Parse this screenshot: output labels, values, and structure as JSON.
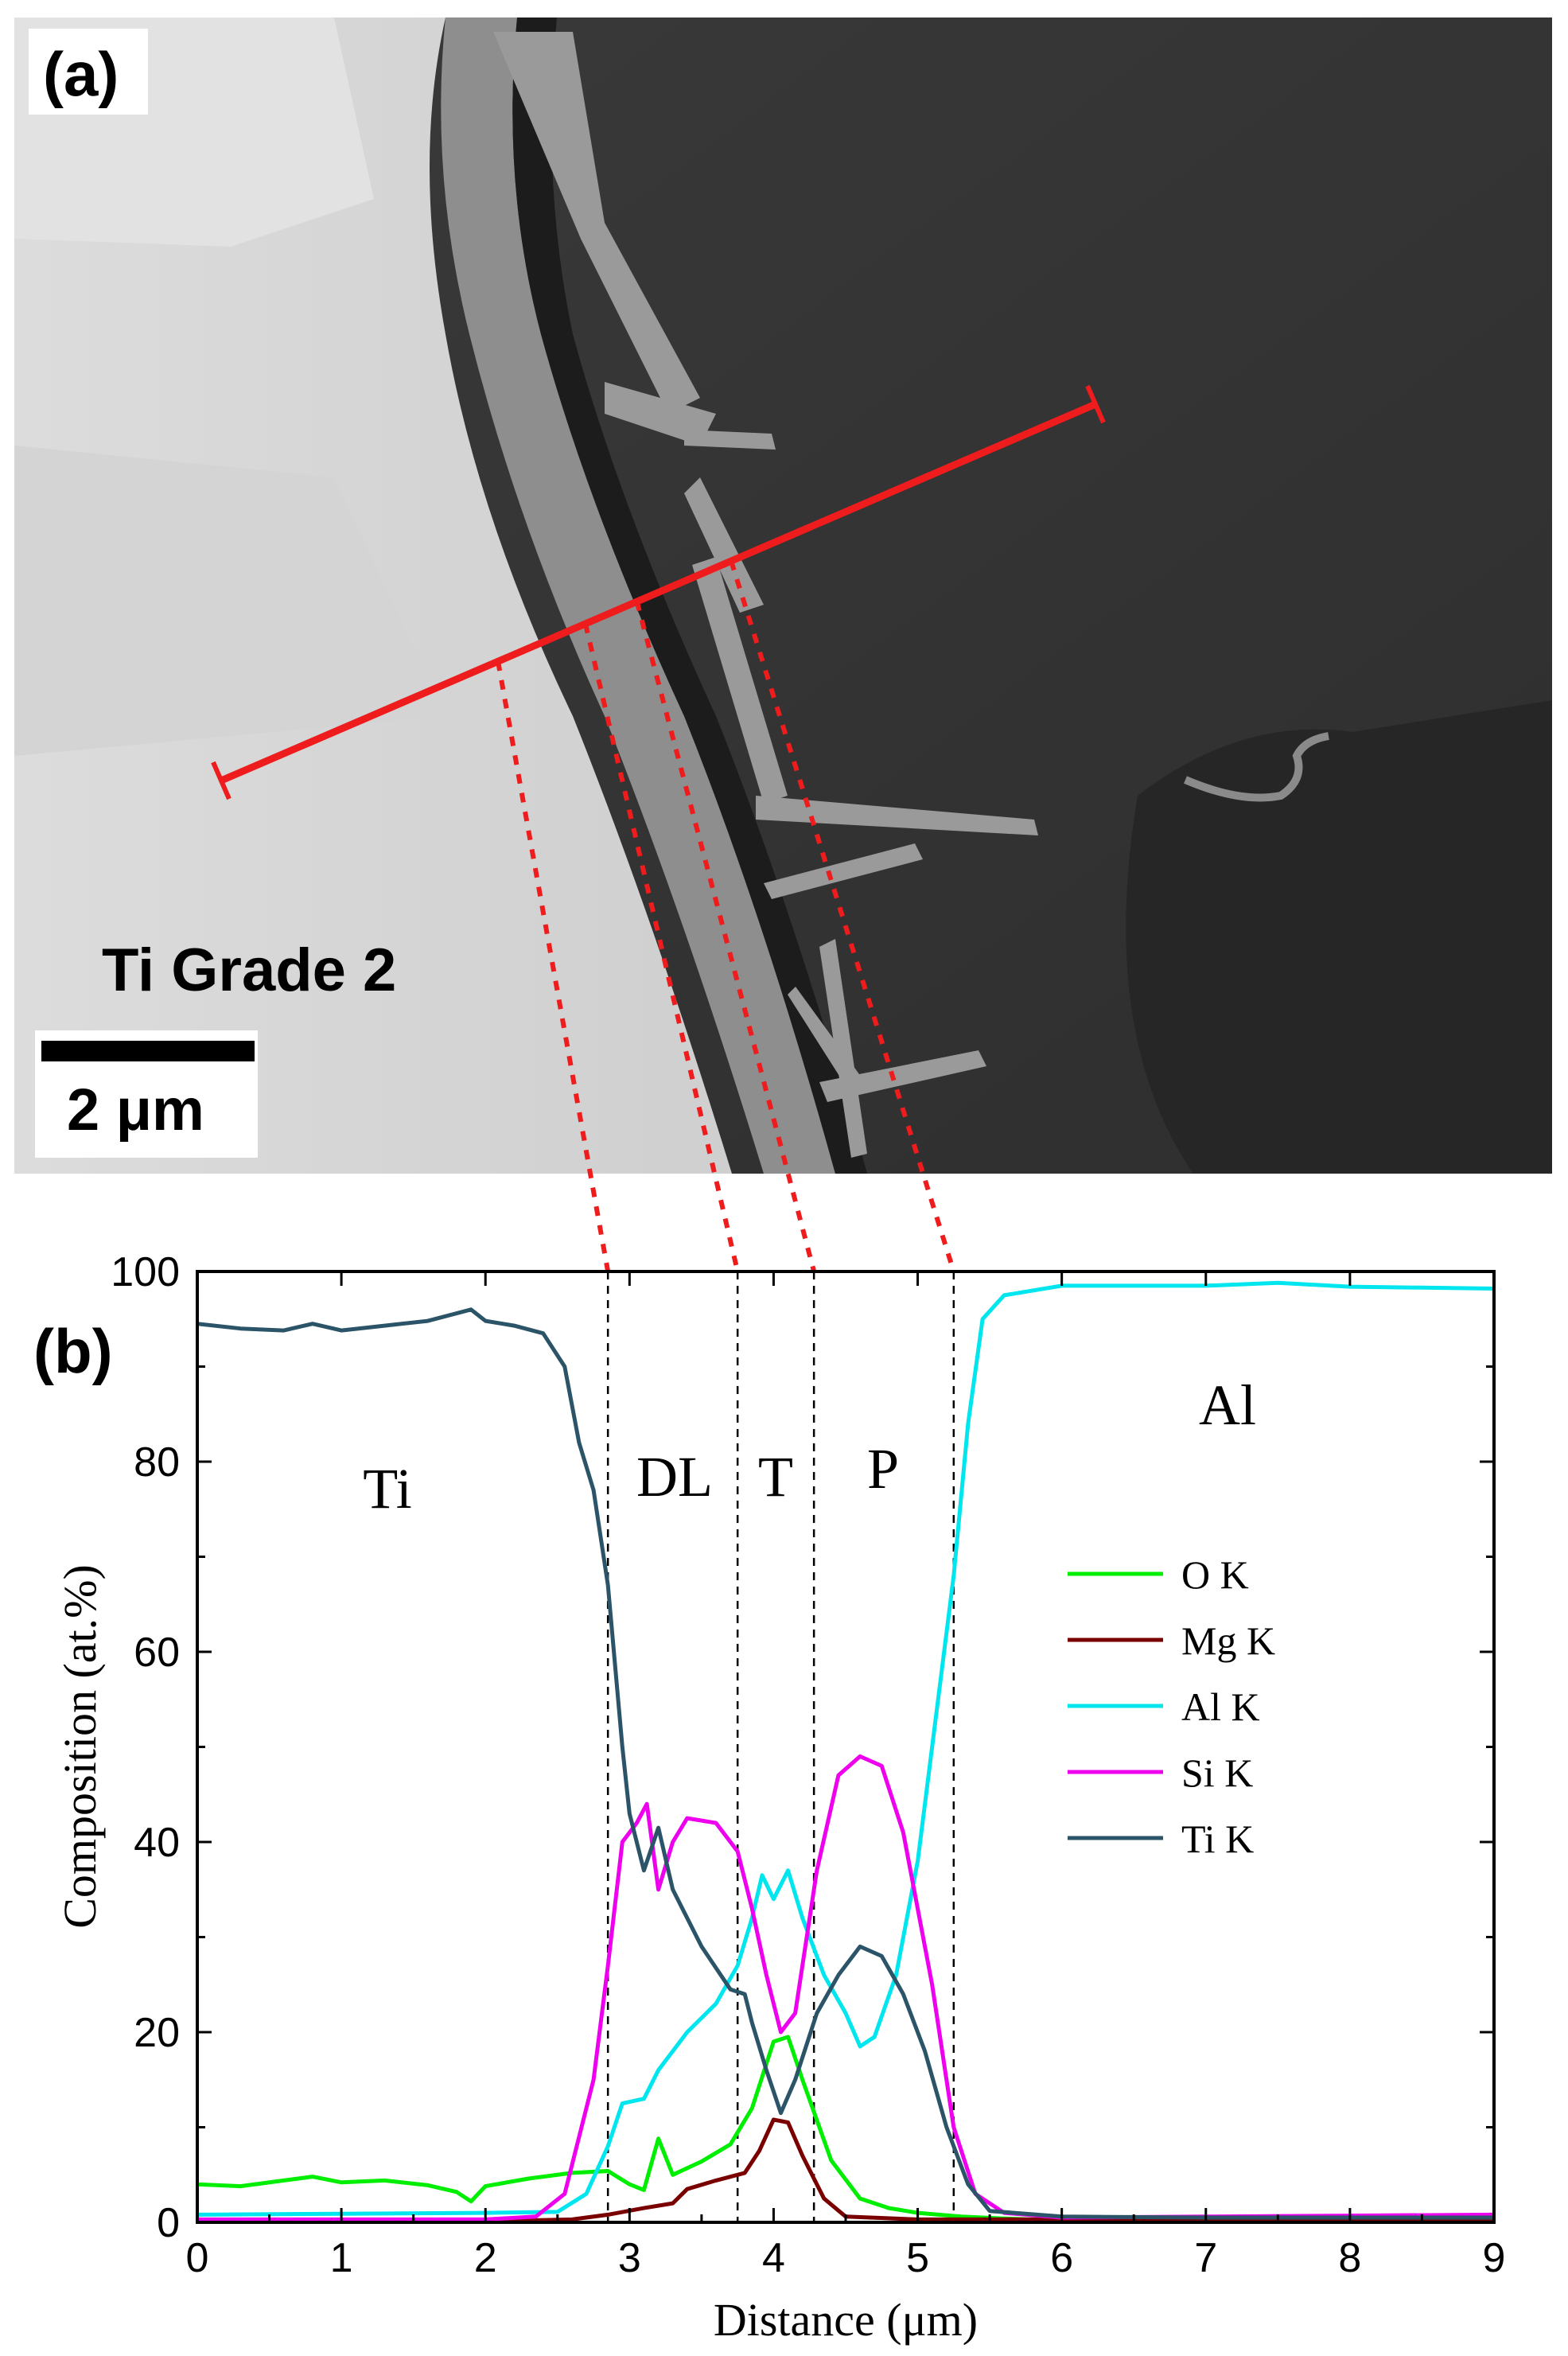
{
  "panel_a": {
    "label": "(a)",
    "material_label": "Ti Grade 2",
    "scale_bar_label": "2 μm"
  },
  "panel_b": {
    "label": "(b)",
    "region_labels": [
      "Ti",
      "DL",
      "T",
      "P",
      "Al"
    ]
  },
  "colors": {
    "O K": "#00ee00",
    "Mg K": "#7a0000",
    "Al K": "#00e6ee",
    "Si K": "#ee00ee",
    "Ti K": "#2b5468",
    "line_scan": "#ee1c1c"
  },
  "chart_data": {
    "type": "line",
    "xlabel": "Distance (μm)",
    "ylabel": "Composition (at.%)",
    "xlim": [
      0,
      9
    ],
    "ylim": [
      0,
      100
    ],
    "xticks": [
      0,
      1,
      2,
      3,
      4,
      5,
      6,
      7,
      8,
      9
    ],
    "yticks": [
      0,
      20,
      40,
      60,
      80,
      100
    ],
    "legend_position": "center-right",
    "boundaries_um": [
      2.85,
      3.75,
      4.28,
      5.25
    ],
    "series": [
      {
        "name": "O  K",
        "points": [
          [
            0,
            4.0
          ],
          [
            0.3,
            3.8
          ],
          [
            0.6,
            4.4
          ],
          [
            0.8,
            4.8
          ],
          [
            1.0,
            4.2
          ],
          [
            1.3,
            4.4
          ],
          [
            1.6,
            3.9
          ],
          [
            1.8,
            3.2
          ],
          [
            1.9,
            2.2
          ],
          [
            2.0,
            3.8
          ],
          [
            2.3,
            4.6
          ],
          [
            2.6,
            5.2
          ],
          [
            2.85,
            5.4
          ],
          [
            3.0,
            4.0
          ],
          [
            3.1,
            3.4
          ],
          [
            3.2,
            8.8
          ],
          [
            3.3,
            5.0
          ],
          [
            3.5,
            6.4
          ],
          [
            3.7,
            8.2
          ],
          [
            3.85,
            12
          ],
          [
            4.0,
            19
          ],
          [
            4.1,
            19.5
          ],
          [
            4.2,
            15
          ],
          [
            4.4,
            6.5
          ],
          [
            4.6,
            2.5
          ],
          [
            4.8,
            1.5
          ],
          [
            5.0,
            1.0
          ],
          [
            5.3,
            0.6
          ],
          [
            5.6,
            0.4
          ],
          [
            6.0,
            0.2
          ],
          [
            7.0,
            0.2
          ],
          [
            8.0,
            0.2
          ],
          [
            9.0,
            0.2
          ]
        ]
      },
      {
        "name": "Mg K",
        "points": [
          [
            0,
            0.1
          ],
          [
            1.0,
            0.1
          ],
          [
            2.0,
            0.1
          ],
          [
            2.6,
            0.3
          ],
          [
            2.85,
            0.8
          ],
          [
            3.1,
            1.5
          ],
          [
            3.3,
            2.0
          ],
          [
            3.4,
            3.5
          ],
          [
            3.6,
            4.4
          ],
          [
            3.8,
            5.2
          ],
          [
            3.9,
            7.5
          ],
          [
            4.0,
            10.8
          ],
          [
            4.1,
            10.5
          ],
          [
            4.2,
            7.0
          ],
          [
            4.35,
            2.5
          ],
          [
            4.5,
            0.6
          ],
          [
            5.0,
            0.3
          ],
          [
            6.0,
            0.3
          ],
          [
            7.0,
            0.3
          ],
          [
            9.0,
            0.3
          ]
        ]
      },
      {
        "name": "Al K",
        "points": [
          [
            0,
            0.8
          ],
          [
            1.0,
            0.9
          ],
          [
            2.0,
            1.0
          ],
          [
            2.5,
            1.1
          ],
          [
            2.7,
            3.0
          ],
          [
            2.85,
            8.0
          ],
          [
            2.95,
            12.5
          ],
          [
            3.1,
            13.0
          ],
          [
            3.2,
            16
          ],
          [
            3.4,
            20
          ],
          [
            3.6,
            23
          ],
          [
            3.75,
            27
          ],
          [
            3.85,
            32
          ],
          [
            3.92,
            36.5
          ],
          [
            4.0,
            34
          ],
          [
            4.1,
            37
          ],
          [
            4.2,
            32
          ],
          [
            4.35,
            26
          ],
          [
            4.5,
            22
          ],
          [
            4.6,
            18.5
          ],
          [
            4.7,
            19.5
          ],
          [
            4.85,
            26
          ],
          [
            5.0,
            38
          ],
          [
            5.1,
            50
          ],
          [
            5.25,
            68
          ],
          [
            5.35,
            84
          ],
          [
            5.45,
            95
          ],
          [
            5.6,
            97.5
          ],
          [
            6.0,
            98.5
          ],
          [
            7.0,
            98.5
          ],
          [
            7.5,
            98.8
          ],
          [
            8.0,
            98.4
          ],
          [
            9.0,
            98.2
          ]
        ]
      },
      {
        "name": "Si K",
        "points": [
          [
            0,
            0.3
          ],
          [
            1.0,
            0.3
          ],
          [
            2.0,
            0.3
          ],
          [
            2.35,
            0.6
          ],
          [
            2.55,
            3.0
          ],
          [
            2.75,
            15
          ],
          [
            2.85,
            27
          ],
          [
            2.95,
            40
          ],
          [
            3.05,
            42
          ],
          [
            3.12,
            44
          ],
          [
            3.2,
            35
          ],
          [
            3.3,
            40
          ],
          [
            3.4,
            42.5
          ],
          [
            3.6,
            42
          ],
          [
            3.75,
            39
          ],
          [
            3.85,
            33
          ],
          [
            3.95,
            26
          ],
          [
            4.05,
            20
          ],
          [
            4.15,
            22
          ],
          [
            4.3,
            37
          ],
          [
            4.45,
            47
          ],
          [
            4.6,
            49
          ],
          [
            4.75,
            48
          ],
          [
            4.9,
            41
          ],
          [
            5.1,
            25
          ],
          [
            5.25,
            10
          ],
          [
            5.4,
            3
          ],
          [
            5.6,
            1.0
          ],
          [
            6.0,
            0.5
          ],
          [
            7.0,
            0.6
          ],
          [
            8.0,
            0.7
          ],
          [
            9.0,
            0.8
          ]
        ]
      },
      {
        "name": "Ti K",
        "points": [
          [
            0,
            94.5
          ],
          [
            0.3,
            94.0
          ],
          [
            0.6,
            93.8
          ],
          [
            0.8,
            94.5
          ],
          [
            1.0,
            93.8
          ],
          [
            1.3,
            94.3
          ],
          [
            1.6,
            94.8
          ],
          [
            1.9,
            96.0
          ],
          [
            2.0,
            94.8
          ],
          [
            2.2,
            94.3
          ],
          [
            2.4,
            93.5
          ],
          [
            2.55,
            90
          ],
          [
            2.65,
            82
          ],
          [
            2.75,
            77
          ],
          [
            2.85,
            67
          ],
          [
            2.95,
            50
          ],
          [
            3.0,
            43
          ],
          [
            3.1,
            37
          ],
          [
            3.2,
            41.5
          ],
          [
            3.3,
            35
          ],
          [
            3.5,
            29
          ],
          [
            3.7,
            24.5
          ],
          [
            3.8,
            24
          ],
          [
            3.85,
            21
          ],
          [
            3.95,
            16
          ],
          [
            4.05,
            11.5
          ],
          [
            4.15,
            15
          ],
          [
            4.3,
            22
          ],
          [
            4.45,
            26
          ],
          [
            4.6,
            29
          ],
          [
            4.75,
            28
          ],
          [
            4.9,
            24
          ],
          [
            5.05,
            18
          ],
          [
            5.2,
            10
          ],
          [
            5.35,
            4.0
          ],
          [
            5.5,
            1.2
          ],
          [
            6.0,
            0.6
          ],
          [
            7.0,
            0.5
          ],
          [
            8.0,
            0.5
          ],
          [
            9.0,
            0.5
          ]
        ]
      }
    ]
  }
}
